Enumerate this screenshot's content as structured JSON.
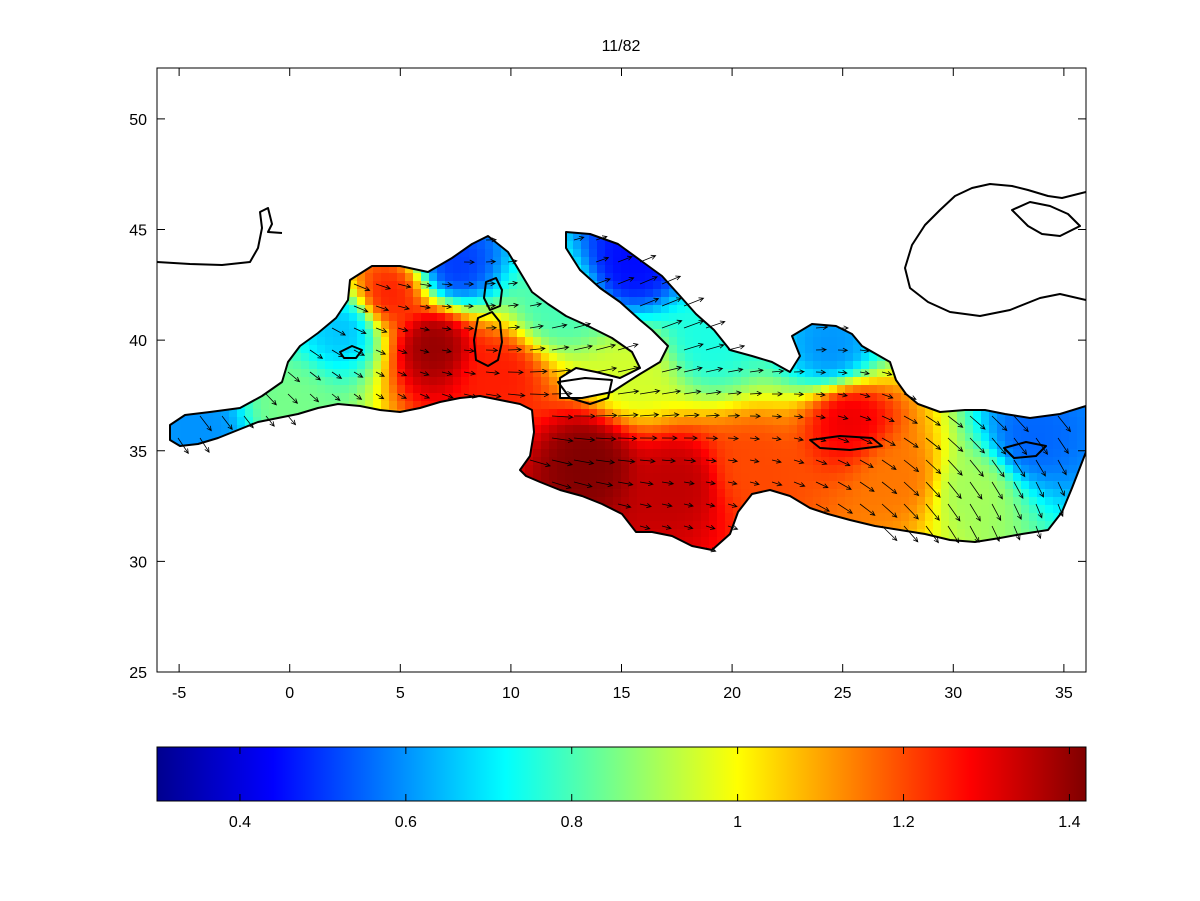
{
  "chart_data": {
    "type": "heatmap",
    "title": "11/82",
    "xlabel": "",
    "ylabel": "",
    "xlim": [
      -6,
      36
    ],
    "ylim": [
      25,
      52.3
    ],
    "x_ticks": [
      -5,
      0,
      5,
      10,
      15,
      20,
      25,
      30,
      35
    ],
    "y_ticks": [
      25,
      30,
      35,
      40,
      45,
      50
    ],
    "colormap": "jet",
    "colorbar": {
      "location": "bottom",
      "range": [
        0.3,
        1.42
      ],
      "ticks": [
        0.4,
        0.6,
        0.8,
        1,
        1.2,
        1.4
      ],
      "colors": [
        "#00008f",
        "#0000ff",
        "#0080ff",
        "#00ffff",
        "#80ff80",
        "#ffff00",
        "#ff8000",
        "#ff0000",
        "#800000"
      ]
    },
    "overlay": "wind/current vectors (quiver) over Mediterranean Sea",
    "field_centers": [
      {
        "lon": 6.5,
        "lat": 39.8,
        "value": 1.4
      },
      {
        "lon": 4.5,
        "lat": 42.0,
        "value": 1.25
      },
      {
        "lon": 13.5,
        "lat": 34.5,
        "value": 1.42
      },
      {
        "lon": 17.5,
        "lat": 33.5,
        "value": 1.35
      },
      {
        "lon": 21.0,
        "lat": 34.2,
        "value": 1.2
      },
      {
        "lon": 25.3,
        "lat": 36.5,
        "value": 1.3
      },
      {
        "lon": 27.5,
        "lat": 33.8,
        "value": 1.15
      },
      {
        "lon": 9.5,
        "lat": 38.5,
        "value": 1.25
      },
      {
        "lon": 0.0,
        "lat": 37.0,
        "value": 0.85
      },
      {
        "lon": -4.0,
        "lat": 36.0,
        "value": 0.6
      },
      {
        "lon": 2.5,
        "lat": 40.5,
        "value": 0.65
      },
      {
        "lon": 7.5,
        "lat": 43.3,
        "value": 0.5
      },
      {
        "lon": 12.0,
        "lat": 41.5,
        "value": 0.8
      },
      {
        "lon": 15.5,
        "lat": 38.5,
        "value": 0.95
      },
      {
        "lon": 19.0,
        "lat": 40.0,
        "value": 0.75
      },
      {
        "lon": 15.5,
        "lat": 43.5,
        "value": 0.45
      },
      {
        "lon": 24.5,
        "lat": 39.5,
        "value": 0.6
      },
      {
        "lon": 33.5,
        "lat": 35.5,
        "value": 0.55
      },
      {
        "lon": 31.0,
        "lat": 33.2,
        "value": 0.9
      }
    ]
  }
}
